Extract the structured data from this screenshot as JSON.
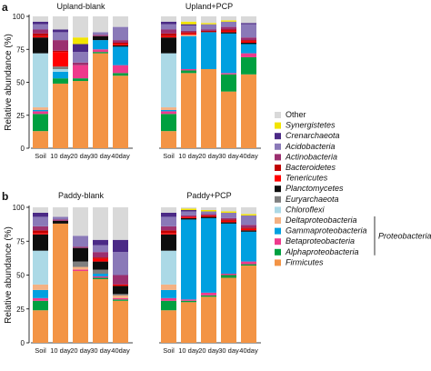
{
  "categories": [
    "Soil",
    "10 day",
    "20 day",
    "30 day",
    "40day"
  ],
  "ylabel": "Relative abundance (%)",
  "yticks": [
    0,
    25,
    50,
    75,
    100
  ],
  "legend": {
    "items": [
      {
        "name": "Other",
        "color": "#d9d9d9",
        "italic": false
      },
      {
        "name": "Synergistetes",
        "color": "#f2e400",
        "italic": true
      },
      {
        "name": "Crenarchaeota",
        "color": "#4b2a86",
        "italic": true
      },
      {
        "name": "Acidobacteria",
        "color": "#8a79b8",
        "italic": true
      },
      {
        "name": "Actinobacteria",
        "color": "#9b2f6f",
        "italic": true
      },
      {
        "name": "Bacteroidetes",
        "color": "#c00000",
        "italic": true
      },
      {
        "name": "Tenericutes",
        "color": "#ff0000",
        "italic": true
      },
      {
        "name": "Planctomycetes",
        "color": "#0d0d0d",
        "italic": true
      },
      {
        "name": "Euryarchaeota",
        "color": "#7f7f7f",
        "italic": true
      },
      {
        "name": "Chloroflexi",
        "color": "#acd9e6",
        "italic": true
      },
      {
        "name": "Deltaproteobacteria",
        "color": "#f4b183",
        "italic": true
      },
      {
        "name": "Gammaproteobacteria",
        "color": "#00a0e0",
        "italic": true
      },
      {
        "name": "Betaproteobacteria",
        "color": "#ee3a8c",
        "italic": true
      },
      {
        "name": "Alphaproteobacteria",
        "color": "#00a040",
        "italic": true
      },
      {
        "name": "Firmicutes",
        "color": "#f39445",
        "italic": true
      }
    ],
    "bracket_label": "Proteobacteria"
  },
  "chart_data": [
    {
      "type": "bar",
      "stacked": true,
      "panel_label": "a",
      "ylabel": "Relative abundance (%)",
      "ylim": [
        0,
        100
      ],
      "groups": [
        {
          "title": "Upland-blank",
          "categories": [
            "Soil",
            "10 day",
            "20 day",
            "30 day",
            "40day"
          ],
          "bars": [
            {
              "Firmicutes": 13,
              "Alphaproteobacteria": 13,
              "Betaproteobacteria": 2,
              "Gammaproteobacteria": 1,
              "Deltaproteobacteria": 2,
              "Chloroflexi": 41,
              "Euryarchaeota": 0,
              "Planctomycetes": 12,
              "Tenericutes": 1,
              "Bacteroidetes": 2,
              "Actinobacteria": 3,
              "Acidobacteria": 4,
              "Crenarchaeota": 2,
              "Synergistetes": 0,
              "Other": 4
            },
            {
              "Firmicutes": 49,
              "Alphaproteobacteria": 4,
              "Betaproteobacteria": 0,
              "Gammaproteobacteria": 5,
              "Deltaproteobacteria": 0,
              "Chloroflexi": 2,
              "Euryarchaeota": 2,
              "Planctomycetes": 0,
              "Tenericutes": 11,
              "Bacteroidetes": 1,
              "Actinobacteria": 8,
              "Acidobacteria": 6,
              "Crenarchaeota": 2,
              "Synergistetes": 0,
              "Other": 10
            },
            {
              "Firmicutes": 51,
              "Alphaproteobacteria": 2,
              "Betaproteobacteria": 10,
              "Gammaproteobacteria": 0,
              "Deltaproteobacteria": 0,
              "Chloroflexi": 0,
              "Euryarchaeota": 0,
              "Planctomycetes": 0,
              "Tenericutes": 0,
              "Bacteroidetes": 0,
              "Actinobacteria": 2,
              "Acidobacteria": 8,
              "Crenarchaeota": 6,
              "Synergistetes": 5,
              "Other": 16
            },
            {
              "Firmicutes": 72,
              "Alphaproteobacteria": 1,
              "Betaproteobacteria": 2,
              "Gammaproteobacteria": 7,
              "Deltaproteobacteria": 0,
              "Chloroflexi": 0,
              "Euryarchaeota": 0,
              "Planctomycetes": 3,
              "Tenericutes": 0,
              "Bacteroidetes": 0,
              "Actinobacteria": 1,
              "Acidobacteria": 2,
              "Crenarchaeota": 0,
              "Synergistetes": 0,
              "Other": 12
            },
            {
              "Firmicutes": 55,
              "Alphaproteobacteria": 2,
              "Betaproteobacteria": 6,
              "Gammaproteobacteria": 14,
              "Deltaproteobacteria": 0,
              "Chloroflexi": 0,
              "Euryarchaeota": 0,
              "Planctomycetes": 1,
              "Tenericutes": 1,
              "Bacteroidetes": 1,
              "Actinobacteria": 2,
              "Acidobacteria": 10,
              "Crenarchaeota": 0,
              "Synergistetes": 0,
              "Other": 8
            }
          ]
        },
        {
          "title": "Upland+PCP",
          "categories": [
            "Soil",
            "10 day",
            "20 day",
            "30 day",
            "40day"
          ],
          "bars": [
            {
              "Firmicutes": 13,
              "Alphaproteobacteria": 13,
              "Betaproteobacteria": 2,
              "Gammaproteobacteria": 1,
              "Deltaproteobacteria": 2,
              "Chloroflexi": 41,
              "Euryarchaeota": 0,
              "Planctomycetes": 12,
              "Tenericutes": 1,
              "Bacteroidetes": 2,
              "Actinobacteria": 3,
              "Acidobacteria": 4,
              "Crenarchaeota": 2,
              "Synergistetes": 0,
              "Other": 4
            },
            {
              "Firmicutes": 57,
              "Alphaproteobacteria": 2,
              "Betaproteobacteria": 1,
              "Gammaproteobacteria": 25,
              "Deltaproteobacteria": 1,
              "Chloroflexi": 0,
              "Euryarchaeota": 0,
              "Planctomycetes": 0,
              "Tenericutes": 1,
              "Bacteroidetes": 1,
              "Actinobacteria": 1,
              "Acidobacteria": 4,
              "Crenarchaeota": 1,
              "Synergistetes": 2,
              "Other": 4
            },
            {
              "Firmicutes": 60,
              "Alphaproteobacteria": 0,
              "Betaproteobacteria": 0,
              "Gammaproteobacteria": 28,
              "Deltaproteobacteria": 0,
              "Chloroflexi": 0,
              "Euryarchaeota": 0,
              "Planctomycetes": 0,
              "Tenericutes": 0,
              "Bacteroidetes": 1,
              "Actinobacteria": 1,
              "Acidobacteria": 4,
              "Crenarchaeota": 0,
              "Synergistetes": 1,
              "Other": 5
            },
            {
              "Firmicutes": 43,
              "Alphaproteobacteria": 13,
              "Betaproteobacteria": 1,
              "Gammaproteobacteria": 30,
              "Deltaproteobacteria": 0,
              "Chloroflexi": 0,
              "Euryarchaeota": 0,
              "Planctomycetes": 1,
              "Tenericutes": 1,
              "Bacteroidetes": 1,
              "Actinobacteria": 2,
              "Acidobacteria": 4,
              "Crenarchaeota": 0,
              "Synergistetes": 1,
              "Other": 3
            },
            {
              "Firmicutes": 56,
              "Alphaproteobacteria": 13,
              "Betaproteobacteria": 3,
              "Gammaproteobacteria": 7,
              "Deltaproteobacteria": 0,
              "Chloroflexi": 0,
              "Euryarchaeota": 0,
              "Planctomycetes": 1,
              "Tenericutes": 1,
              "Bacteroidetes": 1,
              "Actinobacteria": 2,
              "Acidobacteria": 10,
              "Crenarchaeota": 1,
              "Synergistetes": 0,
              "Other": 5
            }
          ]
        }
      ]
    },
    {
      "type": "bar",
      "stacked": true,
      "panel_label": "b",
      "ylabel": "Relative abundance (%)",
      "ylim": [
        0,
        100
      ],
      "groups": [
        {
          "title": "Paddy-blank",
          "categories": [
            "Soil",
            "10 day",
            "20 day",
            "30 day",
            "40day"
          ],
          "bars": [
            {
              "Firmicutes": 24,
              "Alphaproteobacteria": 7,
              "Betaproteobacteria": 2,
              "Gammaproteobacteria": 6,
              "Deltaproteobacteria": 4,
              "Chloroflexi": 25,
              "Euryarchaeota": 0,
              "Planctomycetes": 12,
              "Tenericutes": 1,
              "Bacteroidetes": 2,
              "Actinobacteria": 3,
              "Acidobacteria": 7,
              "Crenarchaeota": 3,
              "Synergistetes": 0,
              "Other": 4
            },
            {
              "Firmicutes": 88,
              "Alphaproteobacteria": 0,
              "Betaproteobacteria": 0,
              "Gammaproteobacteria": 0,
              "Deltaproteobacteria": 0,
              "Chloroflexi": 0,
              "Euryarchaeota": 0,
              "Planctomycetes": 2,
              "Tenericutes": 0,
              "Bacteroidetes": 0,
              "Actinobacteria": 1,
              "Acidobacteria": 2,
              "Crenarchaeota": 0,
              "Synergistetes": 0,
              "Other": 7
            },
            {
              "Firmicutes": 53,
              "Alphaproteobacteria": 0,
              "Betaproteobacteria": 1,
              "Gammaproteobacteria": 0,
              "Deltaproteobacteria": 2,
              "Chloroflexi": 0,
              "Euryarchaeota": 4,
              "Planctomycetes": 10,
              "Tenericutes": 0,
              "Bacteroidetes": 0,
              "Actinobacteria": 1,
              "Acidobacteria": 8,
              "Crenarchaeota": 0,
              "Synergistetes": 0,
              "Other": 21
            },
            {
              "Firmicutes": 47,
              "Alphaproteobacteria": 1,
              "Betaproteobacteria": 1,
              "Gammaproteobacteria": 2,
              "Deltaproteobacteria": 0,
              "Chloroflexi": 0,
              "Euryarchaeota": 3,
              "Planctomycetes": 6,
              "Tenericutes": 2,
              "Bacteroidetes": 1,
              "Actinobacteria": 4,
              "Acidobacteria": 5,
              "Crenarchaeota": 4,
              "Synergistetes": 0,
              "Other": 24
            },
            {
              "Firmicutes": 31,
              "Alphaproteobacteria": 1,
              "Betaproteobacteria": 1,
              "Gammaproteobacteria": 0,
              "Deltaproteobacteria": 2,
              "Chloroflexi": 0,
              "Euryarchaeota": 1,
              "Planctomycetes": 6,
              "Tenericutes": 1,
              "Bacteroidetes": 0,
              "Actinobacteria": 7,
              "Acidobacteria": 17,
              "Crenarchaeota": 9,
              "Synergistetes": 0,
              "Other": 24
            }
          ]
        },
        {
          "title": "Paddy+PCP",
          "categories": [
            "Soil",
            "10 day",
            "20 day",
            "30 day",
            "40day"
          ],
          "bars": [
            {
              "Firmicutes": 24,
              "Alphaproteobacteria": 7,
              "Betaproteobacteria": 2,
              "Gammaproteobacteria": 6,
              "Deltaproteobacteria": 4,
              "Chloroflexi": 25,
              "Euryarchaeota": 0,
              "Planctomycetes": 12,
              "Tenericutes": 1,
              "Bacteroidetes": 2,
              "Actinobacteria": 3,
              "Acidobacteria": 7,
              "Crenarchaeota": 3,
              "Synergistetes": 0,
              "Other": 4
            },
            {
              "Firmicutes": 30,
              "Alphaproteobacteria": 1,
              "Betaproteobacteria": 1,
              "Gammaproteobacteria": 59,
              "Deltaproteobacteria": 0,
              "Chloroflexi": 0,
              "Euryarchaeota": 0,
              "Planctomycetes": 1,
              "Tenericutes": 1,
              "Bacteroidetes": 0,
              "Actinobacteria": 1,
              "Acidobacteria": 3,
              "Crenarchaeota": 1,
              "Synergistetes": 1,
              "Other": 1
            },
            {
              "Firmicutes": 34,
              "Alphaproteobacteria": 1,
              "Betaproteobacteria": 2,
              "Gammaproteobacteria": 55,
              "Deltaproteobacteria": 0,
              "Chloroflexi": 0,
              "Euryarchaeota": 0,
              "Planctomycetes": 1,
              "Tenericutes": 1,
              "Bacteroidetes": 0,
              "Actinobacteria": 1,
              "Acidobacteria": 2,
              "Crenarchaeota": 0,
              "Synergistetes": 1,
              "Other": 2
            },
            {
              "Firmicutes": 48,
              "Alphaproteobacteria": 2,
              "Betaproteobacteria": 1,
              "Gammaproteobacteria": 37,
              "Deltaproteobacteria": 0,
              "Chloroflexi": 0,
              "Euryarchaeota": 0,
              "Planctomycetes": 1,
              "Tenericutes": 1,
              "Bacteroidetes": 1,
              "Actinobacteria": 1,
              "Acidobacteria": 4,
              "Crenarchaeota": 0,
              "Synergistetes": 1,
              "Other": 3
            },
            {
              "Firmicutes": 57,
              "Alphaproteobacteria": 1,
              "Betaproteobacteria": 2,
              "Gammaproteobacteria": 22,
              "Deltaproteobacteria": 0,
              "Chloroflexi": 0,
              "Euryarchaeota": 0,
              "Planctomycetes": 1,
              "Tenericutes": 1,
              "Bacteroidetes": 1,
              "Actinobacteria": 2,
              "Acidobacteria": 7,
              "Crenarchaeota": 0,
              "Synergistetes": 1,
              "Other": 5
            }
          ]
        }
      ]
    }
  ]
}
